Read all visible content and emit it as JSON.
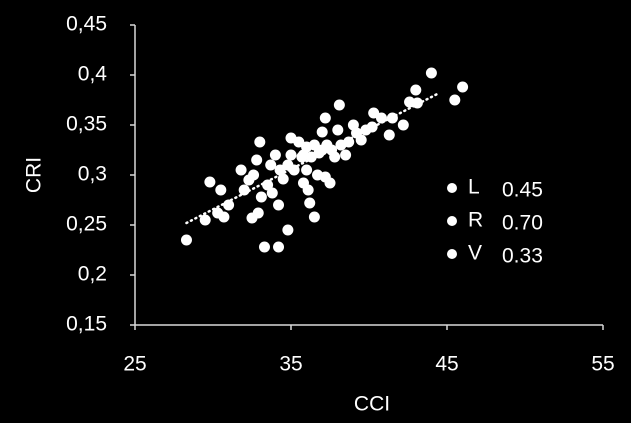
{
  "chart_data": {
    "type": "scatter",
    "x_label": "CCI",
    "y_label": "CRI",
    "x": [
      28.3,
      29.5,
      29.8,
      30.3,
      30.5,
      30.7,
      31,
      31.8,
      32,
      32.3,
      32.5,
      32.6,
      32.8,
      32.9,
      33,
      33.1,
      33.3,
      33.5,
      33.7,
      33.8,
      34,
      34.2,
      34.2,
      34.3,
      34.5,
      34.8,
      35,
      35,
      35.2,
      35.5,
      35.7,
      35.8,
      36,
      36.1,
      36.2,
      36.3,
      36.5,
      36.5,
      36.7,
      36.8,
      37,
      37,
      37.2,
      37.2,
      37.3,
      37.5,
      37.6,
      38,
      38.1,
      38.2,
      38.5,
      38.7,
      39,
      39.2,
      39.5,
      39.8,
      40.2,
      40.3,
      40.8,
      41.3,
      41.5,
      42.2,
      42.6,
      43,
      43.1,
      44,
      45.5,
      46,
      35.8,
      36,
      37.8,
      34.8
    ],
    "values": [
      0.235,
      0.255,
      0.293,
      0.262,
      0.285,
      0.258,
      0.27,
      0.305,
      0.285,
      0.295,
      0.257,
      0.3,
      0.315,
      0.262,
      0.333,
      0.278,
      0.228,
      0.29,
      0.31,
      0.282,
      0.32,
      0.27,
      0.228,
      0.305,
      0.296,
      0.245,
      0.337,
      0.32,
      0.305,
      0.333,
      0.318,
      0.292,
      0.328,
      0.285,
      0.272,
      0.318,
      0.258,
      0.33,
      0.3,
      0.322,
      0.325,
      0.343,
      0.357,
      0.298,
      0.33,
      0.292,
      0.325,
      0.345,
      0.37,
      0.33,
      0.32,
      0.333,
      0.35,
      0.342,
      0.335,
      0.345,
      0.348,
      0.362,
      0.357,
      0.34,
      0.357,
      0.35,
      0.373,
      0.385,
      0.372,
      0.402,
      0.375,
      0.388,
      0.32,
      0.305,
      0.318,
      0.31
    ],
    "color": "#ffffff",
    "trendline": {
      "x": [
        28.3,
        44.5
      ],
      "values": [
        0.252,
        0.382
      ],
      "color": "#ffffff"
    },
    "xlim": [
      25,
      55
    ],
    "xticks": [
      25,
      35,
      45,
      55
    ],
    "ylim": [
      0.15,
      0.45
    ],
    "yticks": [
      {
        "value": 0.15,
        "label": "0,15"
      },
      {
        "value": 0.2,
        "label": "0,2"
      },
      {
        "value": 0.25,
        "label": "0,25"
      },
      {
        "value": 0.3,
        "label": "0,3"
      },
      {
        "value": 0.35,
        "label": "0,35"
      },
      {
        "value": 0.4,
        "label": "0,4"
      },
      {
        "value": 0.45,
        "label": "0,45"
      }
    ],
    "annotations": [
      {
        "label": "L",
        "value": "0.45"
      },
      {
        "label": "R",
        "value": "0.70"
      },
      {
        "label": "V",
        "value": "0.33"
      }
    ]
  }
}
